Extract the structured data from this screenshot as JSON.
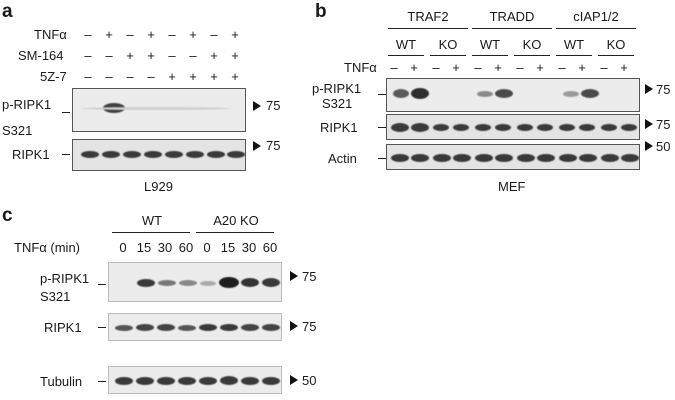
{
  "panel_a": {
    "letter": "a",
    "rows": [
      {
        "label": "TNFα",
        "signs": [
          "–",
          "+",
          "–",
          "+",
          "–",
          "+",
          "–",
          "+"
        ]
      },
      {
        "label": "SM-164",
        "signs": [
          "–",
          "–",
          "+",
          "+",
          "–",
          "–",
          "+",
          "+"
        ]
      },
      {
        "label": "5Z-7",
        "signs": [
          "–",
          "–",
          "–",
          "–",
          "+",
          "+",
          "+",
          "+"
        ]
      }
    ],
    "blots": [
      {
        "label_line1": "p-RIPK1",
        "label_line2": "S321",
        "marker": "75"
      },
      {
        "label_line1": "RIPK1",
        "label_line2": "",
        "marker": "75"
      }
    ],
    "cell_line": "L929"
  },
  "panel_b": {
    "letter": "b",
    "groups": [
      "TRAF2",
      "TRADD",
      "cIAP1/2"
    ],
    "genotypes": [
      "WT",
      "KO",
      "WT",
      "KO",
      "WT",
      "KO"
    ],
    "treatment_label": "TNFα",
    "treatment_signs": [
      "–",
      "+",
      "–",
      "+",
      "–",
      "+",
      "–",
      "+",
      "–",
      "+",
      "–",
      "+"
    ],
    "blots": [
      {
        "label_line1": "p-RIPK1",
        "label_line2": "S321",
        "marker": "75"
      },
      {
        "label_line1": "RIPK1",
        "label_line2": "",
        "marker": "75"
      },
      {
        "label_line1": "Actin",
        "label_line2": "",
        "marker": "50"
      }
    ],
    "cell_line": "MEF"
  },
  "panel_c": {
    "letter": "c",
    "groups": [
      "WT",
      "A20 KO"
    ],
    "treatment_label": "TNFα (min)",
    "times": [
      "0",
      "15",
      "30",
      "60",
      "0",
      "15",
      "30",
      "60"
    ],
    "blots": [
      {
        "label_line1": "p-RIPK1",
        "label_line2": "S321",
        "marker": "75"
      },
      {
        "label_line1": "RIPK1",
        "label_line2": "",
        "marker": "75"
      },
      {
        "label_line1": "Tubulin",
        "label_line2": "",
        "marker": "50"
      }
    ]
  }
}
